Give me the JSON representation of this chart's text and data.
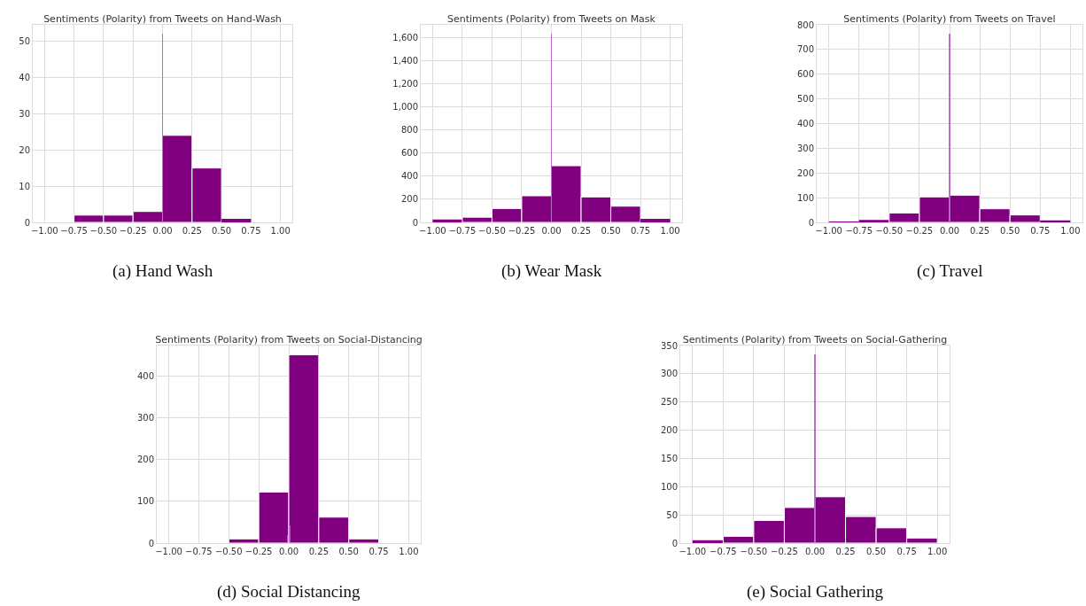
{
  "chart_data": [
    {
      "type": "histogram",
      "title": "Sentiments (Polarity) from Tweets on Hand-Wash",
      "annotations": [
        "(a) Hand Wash"
      ],
      "bins": [
        -1,
        -0.75,
        -0.5,
        -0.25,
        0,
        0.25,
        0.5,
        0.75,
        1
      ],
      "grid": true,
      "xlim": [
        -1.1,
        1.1
      ],
      "ylim": [
        0,
        54.5
      ],
      "xticks": [
        {
          "value": -1,
          "label": "−1.00"
        },
        {
          "value": -0.75,
          "label": "−0.75"
        },
        {
          "value": -0.5,
          "label": "−0.50"
        },
        {
          "value": -0.25,
          "label": "−0.25"
        },
        {
          "value": 0,
          "label": "0.00"
        },
        {
          "value": 0.25,
          "label": "0.25"
        },
        {
          "value": 0.5,
          "label": "0.50"
        },
        {
          "value": 0.75,
          "label": "0.75"
        },
        {
          "value": 1,
          "label": "1.00"
        }
      ],
      "yticks": [
        0,
        10,
        20,
        30,
        40,
        50
      ],
      "series": [
        {
          "color": "#800080",
          "values": [
            0,
            2,
            2,
            3,
            24,
            15,
            1,
            0
          ]
        },
        {
          "type": "bar",
          "color": "#b45fc2",
          "x": [
            0
          ],
          "values": [
            52
          ]
        }
      ]
    },
    {
      "type": "histogram",
      "title": "Sentiments (Polarity) from Tweets on Mask",
      "annotations": [
        "(b) Wear Mask"
      ],
      "bins": [
        -1,
        -0.75,
        -0.5,
        -0.25,
        0,
        0.25,
        0.5,
        0.75,
        1
      ],
      "grid": true,
      "xlim": [
        -1.1,
        1.1
      ],
      "ylim": [
        0,
        1710
      ],
      "xticks": [
        {
          "value": -1,
          "label": "−1.00"
        },
        {
          "value": -0.75,
          "label": "−0.75"
        },
        {
          "value": -0.5,
          "label": "−0.50"
        },
        {
          "value": -0.25,
          "label": "−0.25"
        },
        {
          "value": 0,
          "label": "0.00"
        },
        {
          "value": 0.25,
          "label": "0.25"
        },
        {
          "value": 0.5,
          "label": "0.50"
        },
        {
          "value": 0.75,
          "label": "0.75"
        },
        {
          "value": 1,
          "label": "1.00"
        }
      ],
      "yticks": [
        0,
        200,
        400,
        600,
        800,
        {
          "value": 1000,
          "label": "1,000"
        },
        {
          "value": 1200,
          "label": "1,200"
        },
        {
          "value": 1400,
          "label": "1,400"
        },
        {
          "value": 1600,
          "label": "1,600"
        }
      ],
      "series": [
        {
          "color": "#800080",
          "values": [
            25,
            45,
            120,
            230,
            490,
            220,
            140,
            30
          ]
        },
        {
          "type": "bar",
          "color": "#b45fc2",
          "x": [
            0
          ],
          "values": [
            1630
          ]
        }
      ]
    },
    {
      "type": "histogram",
      "title": "Sentiments (Polarity) from Tweets on Travel",
      "annotations": [
        "(c) Travel"
      ],
      "bins": [
        -1,
        -0.75,
        -0.5,
        -0.25,
        0,
        0.25,
        0.5,
        0.75,
        1
      ],
      "grid": true,
      "xlim": [
        -1.1,
        1.1
      ],
      "ylim": [
        0,
        800
      ],
      "xticks": [
        {
          "value": -1,
          "label": "−1.00"
        },
        {
          "value": -0.75,
          "label": "−0.75"
        },
        {
          "value": -0.5,
          "label": "−0.50"
        },
        {
          "value": -0.25,
          "label": "−0.25"
        },
        {
          "value": 0,
          "label": "0.00"
        },
        {
          "value": 0.25,
          "label": "0.25"
        },
        {
          "value": 0.5,
          "label": "0.50"
        },
        {
          "value": 0.75,
          "label": "0.75"
        },
        {
          "value": 1,
          "label": "1.00"
        }
      ],
      "yticks": [
        0,
        100,
        200,
        300,
        400,
        500,
        600,
        700,
        800
      ],
      "series": [
        {
          "color": "#800080",
          "values": [
            4,
            10,
            38,
            103,
            110,
            55,
            30,
            8
          ]
        },
        {
          "type": "bar",
          "color": "#b45fc2",
          "x": [
            0
          ],
          "values": [
            765
          ]
        }
      ]
    },
    {
      "type": "histogram",
      "title": "Sentiments (Polarity) from Tweets on Social-Distancing",
      "annotations": [
        "(d) Social Distancing"
      ],
      "bins": [
        -1,
        -0.75,
        -0.5,
        -0.25,
        0,
        0.25,
        0.5,
        0.75,
        1
      ],
      "grid": true,
      "xlim": [
        -1.1,
        1.1
      ],
      "ylim": [
        0,
        472
      ],
      "xticks": [
        {
          "value": -1,
          "label": "−1.00"
        },
        {
          "value": -0.75,
          "label": "−0.75"
        },
        {
          "value": -0.5,
          "label": "−0.50"
        },
        {
          "value": -0.25,
          "label": "−0.25"
        },
        {
          "value": 0,
          "label": "0.00"
        },
        {
          "value": 0.25,
          "label": "0.25"
        },
        {
          "value": 0.5,
          "label": "0.50"
        },
        {
          "value": 0.75,
          "label": "0.75"
        },
        {
          "value": 1,
          "label": "1.00"
        }
      ],
      "yticks": [
        0,
        100,
        200,
        300,
        400
      ],
      "series": [
        {
          "color": "#800080",
          "values": [
            0,
            0,
            10,
            122,
            450,
            62,
            10,
            0
          ]
        },
        {
          "type": "bar",
          "color": "#b45fc2",
          "x": [
            -0.01,
            0.01
          ],
          "values": [
            20,
            43
          ]
        }
      ]
    },
    {
      "type": "histogram",
      "title": "Sentiments (Polarity) from Tweets on Social-Gathering",
      "annotations": [
        "(e) Social Gathering"
      ],
      "bins": [
        -1,
        -0.75,
        -0.5,
        -0.25,
        0,
        0.25,
        0.5,
        0.75,
        1
      ],
      "grid": true,
      "xlim": [
        -1.1,
        1.1
      ],
      "ylim": [
        0,
        350
      ],
      "xticks": [
        {
          "value": -1,
          "label": "−1.00"
        },
        {
          "value": -0.75,
          "label": "−0.75"
        },
        {
          "value": -0.5,
          "label": "−0.50"
        },
        {
          "value": -0.25,
          "label": "−0.25"
        },
        {
          "value": 0,
          "label": "0.00"
        },
        {
          "value": 0.25,
          "label": "0.25"
        },
        {
          "value": 0.5,
          "label": "0.50"
        },
        {
          "value": 0.75,
          "label": "0.75"
        },
        {
          "value": 1,
          "label": "1.00"
        }
      ],
      "yticks": [
        0,
        50,
        100,
        150,
        200,
        250,
        300,
        350
      ],
      "series": [
        {
          "color": "#800080",
          "values": [
            5,
            12,
            40,
            63,
            82,
            47,
            27,
            9
          ]
        },
        {
          "type": "bar",
          "color": "#b45fc2",
          "x": [
            0
          ],
          "values": [
            335
          ]
        }
      ]
    }
  ]
}
